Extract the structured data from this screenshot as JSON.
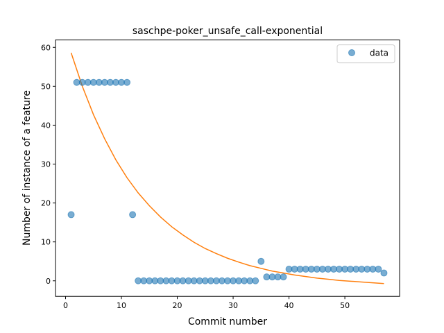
{
  "chart_data": {
    "type": "scatter",
    "title": "saschpe-poker_unsafe_call-exponential",
    "xlabel": "Commit number",
    "ylabel": "Number of instance of a feature",
    "xlim": [
      -1.8,
      59.8
    ],
    "ylim": [
      -4.0,
      61.9
    ],
    "x_ticks": [
      0,
      10,
      20,
      30,
      40,
      50
    ],
    "y_ticks": [
      0,
      10,
      20,
      30,
      40,
      50,
      60
    ],
    "legend": {
      "position": "top-right",
      "entries": [
        "data"
      ]
    },
    "grid": false,
    "colors": {
      "points": "#1f77b4",
      "fit": "#ff7f0e"
    },
    "series": [
      {
        "name": "data",
        "kind": "scatter",
        "x": [
          1,
          2,
          3,
          4,
          5,
          6,
          7,
          8,
          9,
          10,
          11,
          12,
          13,
          14,
          15,
          16,
          17,
          18,
          19,
          20,
          21,
          22,
          23,
          24,
          25,
          26,
          27,
          28,
          29,
          30,
          31,
          32,
          33,
          34,
          35,
          36,
          37,
          38,
          39,
          40,
          41,
          42,
          43,
          44,
          45,
          46,
          47,
          48,
          49,
          50,
          51,
          52,
          53,
          54,
          55,
          56,
          57
        ],
        "y": [
          17,
          51,
          51,
          51,
          51,
          51,
          51,
          51,
          51,
          51,
          51,
          17,
          0,
          0,
          0,
          0,
          0,
          0,
          0,
          0,
          0,
          0,
          0,
          0,
          0,
          0,
          0,
          0,
          0,
          0,
          0,
          0,
          0,
          0,
          5,
          1,
          1,
          1,
          1,
          3,
          3,
          3,
          3,
          3,
          3,
          3,
          3,
          3,
          3,
          3,
          3,
          3,
          3,
          3,
          3,
          3,
          2
        ]
      },
      {
        "kind": "line",
        "x": [
          1,
          3,
          5,
          7,
          9,
          11,
          13,
          15,
          17,
          19,
          21,
          23,
          25,
          27,
          29,
          31,
          33,
          35,
          37,
          39,
          41,
          43,
          45,
          47,
          49,
          51,
          53,
          55,
          57
        ],
        "y": [
          58.6,
          50.0,
          42.7,
          36.5,
          31.1,
          26.5,
          22.6,
          19.3,
          16.4,
          13.9,
          11.8,
          9.9,
          8.3,
          7.0,
          5.8,
          4.8,
          3.9,
          3.2,
          2.5,
          2.0,
          1.5,
          1.1,
          0.7,
          0.4,
          0.1,
          -0.1,
          -0.3,
          -0.5,
          -0.7
        ]
      }
    ]
  }
}
